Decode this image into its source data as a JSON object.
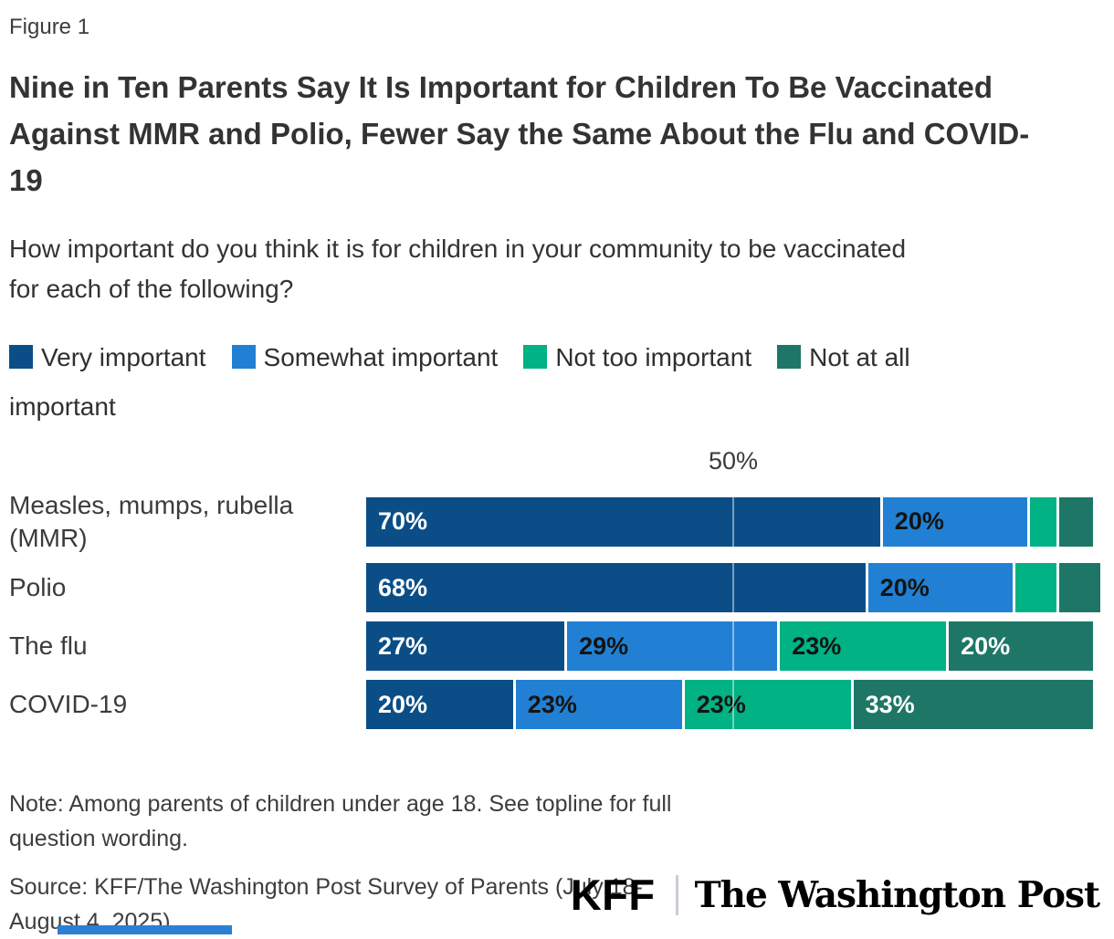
{
  "figure_label": "Figure 1",
  "title": "Nine in Ten Parents Say It Is Important for Children To Be Vaccinated Against MMR and Polio, Fewer Say the Same About the Flu and COVID-19",
  "subtitle": "How important do you think it is for children in your community to be vaccinated for each of the following?",
  "chart_data": {
    "type": "bar",
    "orientation": "horizontal-stacked",
    "categories": [
      "Measles, mumps, rubella (MMR)",
      "Polio",
      "The flu",
      "COVID-19"
    ],
    "series": [
      {
        "name": "Very important",
        "color": "#0b4e87",
        "label_color": "#ffffff",
        "values": [
          70,
          68,
          27,
          20
        ]
      },
      {
        "name": "Somewhat important",
        "color": "#2180d3",
        "label_color": "#141414",
        "values": [
          20,
          20,
          29,
          23
        ]
      },
      {
        "name": "Not too important",
        "color": "#00b284",
        "label_color": "#141414",
        "values": [
          4,
          6,
          23,
          23
        ]
      },
      {
        "name": "Not at all important",
        "color": "#1e7766",
        "label_color": "#ffffff",
        "values": [
          5,
          6,
          20,
          33
        ]
      }
    ],
    "value_suffix": "%",
    "label_min_pct_shown": 10,
    "xaxis": {
      "max": 100,
      "ticks": [
        {
          "value": 50,
          "label": "50%"
        }
      ]
    },
    "gridline_at": 50,
    "legend_position": "top",
    "note_on_small_segments": "segments under 10% are unlabeled in the figure; values estimated from bar widths"
  },
  "note": "Note: Among parents of children under age 18. See topline for full question wording.",
  "source": "Source: KFF/The Washington Post Survey of Parents (July 18-August 4, 2025)",
  "logos": {
    "kff": "KFF",
    "washington_post": "The Washington Post"
  },
  "colors": {
    "background": "#ffffff",
    "title_text": "#333333",
    "body_text": "#3d3d3d",
    "gridline": "rgba(255,255,255,0.45)",
    "logo_divider": "#c7cdd3",
    "bottom_strip": "#2b7fd4"
  }
}
